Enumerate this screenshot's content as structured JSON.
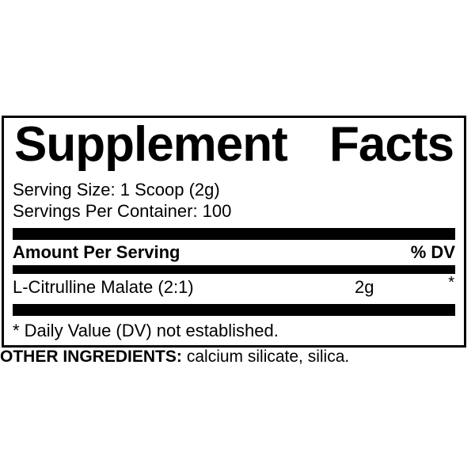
{
  "colors": {
    "text": "#000000",
    "background": "#ffffff",
    "border": "#000000",
    "divider_bar": "#000000"
  },
  "panel": {
    "title_word_1": "Supplement",
    "title_word_2": "Facts",
    "serving_size": "Serving Size: 1 Scoop (2g)",
    "servings_per_container": "Servings Per Container: 100",
    "amount_per_serving_header": "Amount Per Serving",
    "percent_dv_header": "% DV",
    "ingredients": [
      {
        "name": "L-Citrulline Malate (2:1)",
        "amount": "2g",
        "daily_value": "*"
      }
    ],
    "footnote": "* Daily Value (DV) not established."
  },
  "other_ingredients": {
    "label": "OTHER INGREDIENTS:",
    "value": "calcium silicate, silica."
  }
}
